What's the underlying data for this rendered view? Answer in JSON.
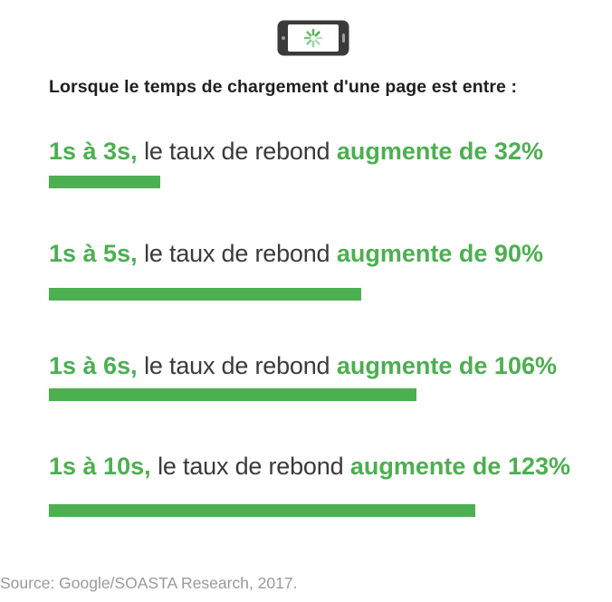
{
  "heading": "Lorsque le temps de chargement d'une page est entre :",
  "colors": {
    "accent": "#4caf50",
    "text": "#3a3a3a",
    "heading": "#1f1f1f",
    "source": "#9a9a9a"
  },
  "icon": "smartphone-loading-icon",
  "rows": [
    {
      "range": "1s à 3s,",
      "middle": "le taux de rebond",
      "effect": "augmente de 32%",
      "value": 32
    },
    {
      "range": "1s à 5s,",
      "middle": "le taux de rebond",
      "effect": "augmente de 90%",
      "value": 90
    },
    {
      "range": "1s à 6s,",
      "middle": "le taux de rebond",
      "effect": "augmente de 106%",
      "value": 106
    },
    {
      "range": "1s à 10s,",
      "middle": "le taux de rebond",
      "effect": "augmente de 123%",
      "value": 123
    }
  ],
  "source": "Source: Google/SOASTA Research, 2017.",
  "chart_data": {
    "type": "bar",
    "orientation": "horizontal",
    "title": "Lorsque le temps de chargement d'une page est entre :",
    "categories": [
      "1s à 3s",
      "1s à 5s",
      "1s à 6s",
      "1s à 10s"
    ],
    "values": [
      32,
      90,
      106,
      123
    ],
    "grid": false,
    "legend": "none"
  }
}
